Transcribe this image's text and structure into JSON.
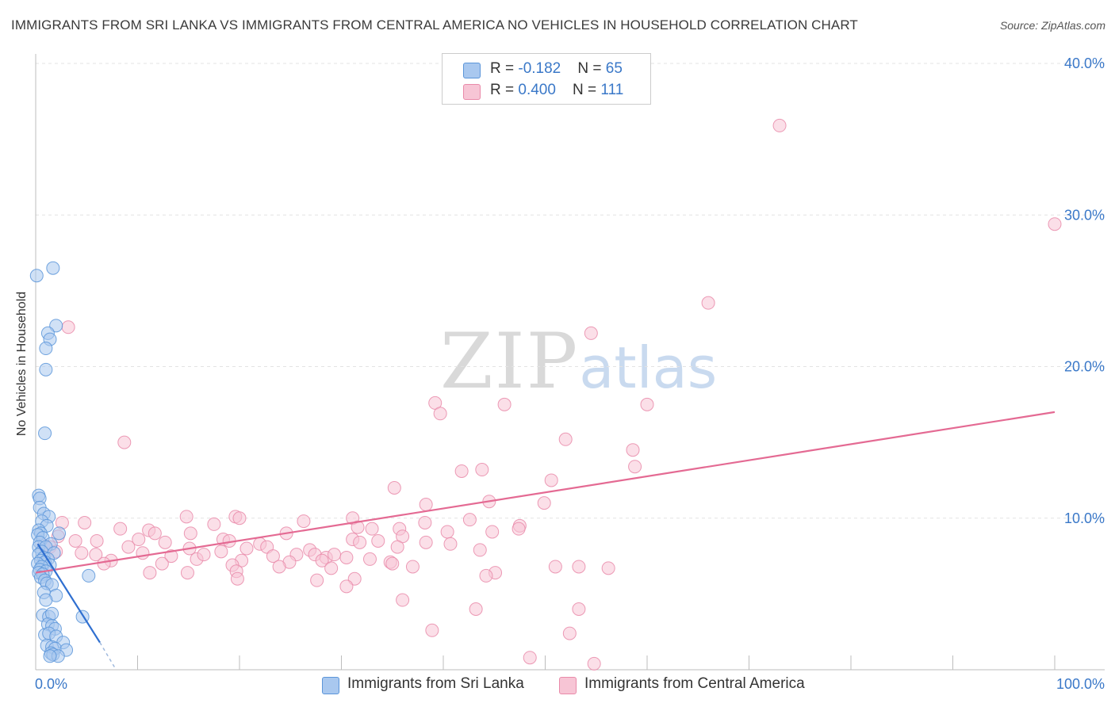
{
  "title": "IMMIGRANTS FROM SRI LANKA VS IMMIGRANTS FROM CENTRAL AMERICA NO VEHICLES IN HOUSEHOLD CORRELATION CHART",
  "source": "Source: ZipAtlas.com",
  "watermark": {
    "zip": "ZIP",
    "atlas": "atlas"
  },
  "legend": {
    "rows": [
      {
        "r_label": "R = ",
        "r_value": "-0.182",
        "n_label": "N = ",
        "n_value": "65"
      },
      {
        "r_label": "R = ",
        "r_value": "0.400",
        "n_label": "N = ",
        "n_value": "111"
      }
    ]
  },
  "bottom_legend": {
    "series1": "Immigrants from Sri Lanka",
    "series2": "Immigrants from Central America"
  },
  "colors": {
    "blue_fill": "#a9c8ef",
    "blue_stroke": "#5b95d9",
    "blue_line": "#2f6fd0",
    "pink_fill": "#f7c5d5",
    "pink_stroke": "#e98aa9",
    "pink_line": "#e46a93",
    "tick_label": "#3a78c8",
    "grid": "#e3e3e3"
  },
  "chart_data": {
    "type": "scatter",
    "title": "IMMIGRANTS FROM SRI LANKA VS IMMIGRANTS FROM CENTRAL AMERICA NO VEHICLES IN HOUSEHOLD CORRELATION CHART",
    "xlabel": "",
    "ylabel": "No Vehicles in Household",
    "xlim": [
      0,
      100
    ],
    "ylim": [
      0,
      40
    ],
    "x_tick_labels": [
      "0.0%",
      "100.0%"
    ],
    "y_ticks": [
      10,
      20,
      30,
      40
    ],
    "y_tick_labels": [
      "10.0%",
      "20.0%",
      "30.0%",
      "40.0%"
    ],
    "grid": true,
    "series": [
      {
        "name": "Immigrants from Sri Lanka",
        "color": "blue",
        "R": -0.182,
        "N": 65,
        "trend": {
          "x": [
            0.2,
            6.3
          ],
          "y": [
            8.3,
            1.8
          ],
          "dashed_to": [
            7.8,
            0.1
          ]
        },
        "points": [
          [
            0.1,
            26.0
          ],
          [
            1.7,
            26.5
          ],
          [
            2.0,
            22.7
          ],
          [
            1.2,
            22.2
          ],
          [
            1.4,
            21.8
          ],
          [
            1.0,
            21.2
          ],
          [
            1.0,
            19.8
          ],
          [
            0.9,
            15.6
          ],
          [
            0.3,
            11.5
          ],
          [
            0.4,
            11.3
          ],
          [
            0.4,
            10.7
          ],
          [
            0.8,
            10.3
          ],
          [
            1.3,
            10.1
          ],
          [
            0.6,
            9.8
          ],
          [
            1.1,
            9.5
          ],
          [
            0.3,
            9.2
          ],
          [
            0.5,
            9.0
          ],
          [
            2.3,
            9.0
          ],
          [
            0.2,
            8.9
          ],
          [
            0.7,
            8.7
          ],
          [
            0.4,
            8.4
          ],
          [
            1.5,
            8.3
          ],
          [
            0.3,
            8.1
          ],
          [
            1.0,
            8.1
          ],
          [
            0.6,
            7.8
          ],
          [
            1.8,
            7.7
          ],
          [
            0.3,
            7.6
          ],
          [
            0.8,
            7.4
          ],
          [
            1.2,
            7.3
          ],
          [
            0.5,
            7.2
          ],
          [
            0.9,
            7.1
          ],
          [
            0.2,
            7.0
          ],
          [
            1.4,
            6.9
          ],
          [
            0.6,
            6.8
          ],
          [
            0.4,
            6.6
          ],
          [
            1.0,
            6.5
          ],
          [
            0.3,
            6.4
          ],
          [
            0.7,
            6.3
          ],
          [
            5.2,
            6.2
          ],
          [
            0.5,
            6.1
          ],
          [
            0.9,
            5.9
          ],
          [
            1.1,
            5.7
          ],
          [
            1.6,
            5.6
          ],
          [
            0.8,
            5.1
          ],
          [
            2.0,
            4.9
          ],
          [
            1.0,
            4.6
          ],
          [
            0.7,
            3.6
          ],
          [
            1.3,
            3.5
          ],
          [
            1.6,
            3.7
          ],
          [
            4.6,
            3.5
          ],
          [
            1.2,
            3.0
          ],
          [
            1.6,
            2.9
          ],
          [
            1.9,
            2.7
          ],
          [
            0.9,
            2.3
          ],
          [
            1.3,
            2.4
          ],
          [
            2.0,
            2.2
          ],
          [
            2.7,
            1.8
          ],
          [
            1.1,
            1.6
          ],
          [
            1.6,
            1.5
          ],
          [
            1.9,
            1.4
          ],
          [
            3.0,
            1.3
          ],
          [
            1.5,
            1.1
          ],
          [
            1.7,
            1.0
          ],
          [
            2.2,
            0.9
          ],
          [
            1.4,
            0.9
          ]
        ]
      },
      {
        "name": "Immigrants from Central America",
        "color": "pink",
        "R": 0.4,
        "N": 111,
        "trend": {
          "x": [
            0,
            100
          ],
          "y": [
            6.4,
            17.0
          ]
        },
        "points": [
          [
            73.0,
            35.9
          ],
          [
            100.0,
            29.4
          ],
          [
            66.0,
            24.2
          ],
          [
            3.2,
            22.6
          ],
          [
            54.5,
            22.2
          ],
          [
            39.2,
            17.6
          ],
          [
            39.7,
            16.9
          ],
          [
            46.0,
            17.5
          ],
          [
            60.0,
            17.5
          ],
          [
            8.7,
            15.0
          ],
          [
            52.0,
            15.2
          ],
          [
            58.6,
            14.5
          ],
          [
            41.8,
            13.1
          ],
          [
            43.8,
            13.2
          ],
          [
            58.8,
            13.4
          ],
          [
            50.6,
            12.5
          ],
          [
            35.2,
            12.0
          ],
          [
            44.5,
            11.1
          ],
          [
            38.3,
            10.9
          ],
          [
            49.9,
            11.0
          ],
          [
            14.8,
            10.1
          ],
          [
            19.6,
            10.1
          ],
          [
            31.1,
            10.0
          ],
          [
            42.6,
            9.9
          ],
          [
            20.0,
            10.0
          ],
          [
            2.6,
            9.7
          ],
          [
            4.8,
            9.7
          ],
          [
            17.5,
            9.6
          ],
          [
            26.3,
            9.8
          ],
          [
            38.2,
            9.7
          ],
          [
            47.5,
            9.5
          ],
          [
            8.3,
            9.3
          ],
          [
            33.0,
            9.3
          ],
          [
            11.1,
            9.2
          ],
          [
            31.6,
            9.4
          ],
          [
            35.7,
            9.3
          ],
          [
            44.8,
            9.1
          ],
          [
            11.7,
            9.0
          ],
          [
            15.2,
            9.0
          ],
          [
            24.6,
            9.0
          ],
          [
            40.4,
            9.1
          ],
          [
            2.2,
            8.8
          ],
          [
            10.1,
            8.6
          ],
          [
            18.4,
            8.6
          ],
          [
            31.1,
            8.6
          ],
          [
            33.6,
            8.5
          ],
          [
            36.0,
            8.8
          ],
          [
            3.9,
            8.5
          ],
          [
            6.0,
            8.5
          ],
          [
            12.7,
            8.4
          ],
          [
            22.0,
            8.3
          ],
          [
            31.8,
            8.4
          ],
          [
            38.3,
            8.4
          ],
          [
            40.7,
            8.3
          ],
          [
            0.8,
            8.2
          ],
          [
            1.4,
            8.1
          ],
          [
            9.1,
            8.1
          ],
          [
            15.1,
            8.0
          ],
          [
            18.2,
            7.8
          ],
          [
            20.7,
            8.0
          ],
          [
            22.7,
            8.1
          ],
          [
            26.9,
            7.9
          ],
          [
            35.5,
            8.1
          ],
          [
            43.6,
            7.9
          ],
          [
            10.5,
            7.7
          ],
          [
            13.3,
            7.5
          ],
          [
            23.3,
            7.5
          ],
          [
            25.6,
            7.6
          ],
          [
            27.4,
            7.6
          ],
          [
            28.5,
            7.4
          ],
          [
            29.3,
            7.6
          ],
          [
            30.5,
            7.4
          ],
          [
            2.0,
            7.8
          ],
          [
            4.5,
            7.7
          ],
          [
            5.9,
            7.6
          ],
          [
            7.4,
            7.2
          ],
          [
            15.8,
            7.3
          ],
          [
            20.2,
            7.2
          ],
          [
            24.9,
            7.1
          ],
          [
            28.1,
            7.2
          ],
          [
            32.8,
            7.3
          ],
          [
            34.8,
            7.1
          ],
          [
            6.7,
            7.0
          ],
          [
            12.4,
            7.0
          ],
          [
            19.3,
            6.9
          ],
          [
            23.9,
            6.8
          ],
          [
            29.0,
            6.7
          ],
          [
            35.0,
            7.0
          ],
          [
            37.0,
            6.8
          ],
          [
            51.0,
            6.8
          ],
          [
            56.2,
            6.7
          ],
          [
            11.2,
            6.4
          ],
          [
            14.9,
            6.4
          ],
          [
            19.7,
            6.5
          ],
          [
            45.1,
            6.4
          ],
          [
            31.3,
            6.0
          ],
          [
            19.8,
            6.0
          ],
          [
            27.6,
            5.9
          ],
          [
            30.5,
            5.5
          ],
          [
            44.2,
            6.2
          ],
          [
            36.0,
            4.6
          ],
          [
            43.2,
            4.0
          ],
          [
            53.3,
            4.0
          ],
          [
            38.9,
            2.6
          ],
          [
            52.4,
            2.4
          ],
          [
            48.5,
            0.8
          ],
          [
            54.8,
            0.4
          ],
          [
            19.0,
            8.5
          ],
          [
            16.5,
            7.6
          ],
          [
            53.3,
            6.8
          ],
          [
            47.4,
            9.3
          ]
        ]
      }
    ]
  }
}
